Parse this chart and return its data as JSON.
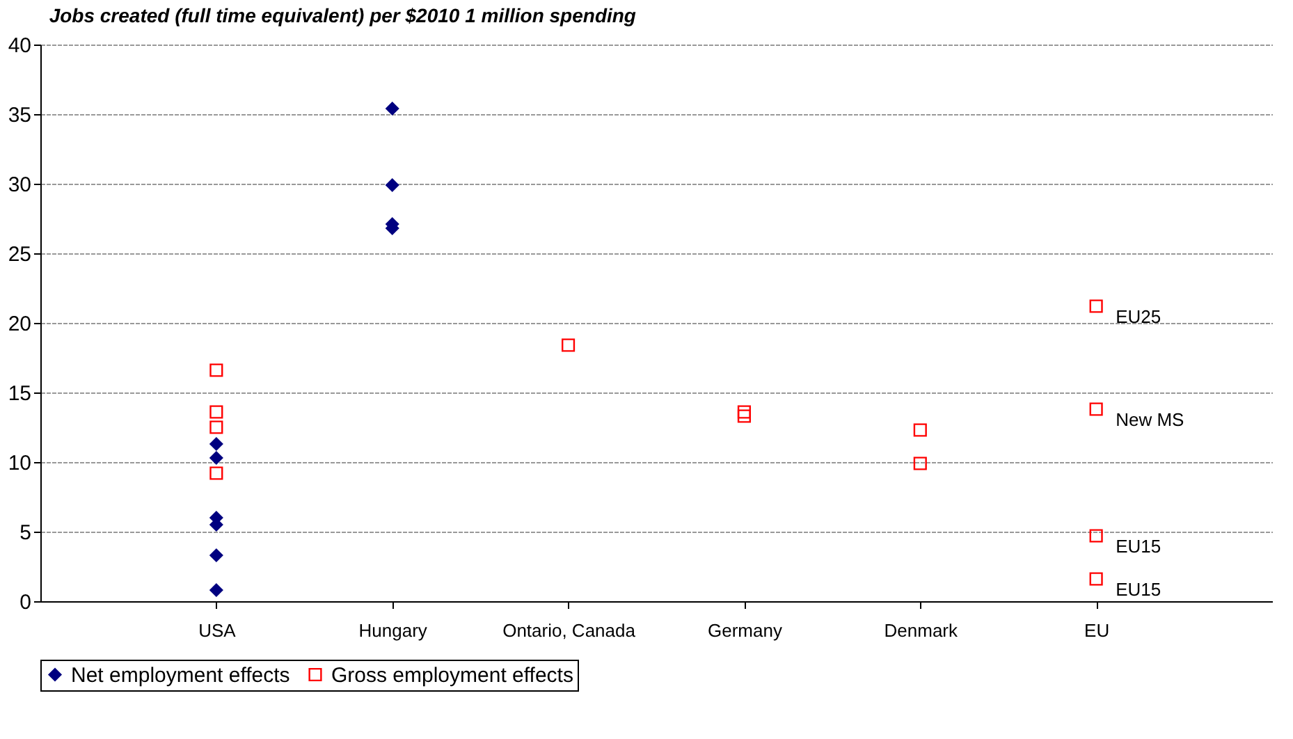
{
  "chart_data": {
    "type": "scatter",
    "title": "Jobs created (full time equivalent) per $2010 1 million spending",
    "categories": [
      "USA",
      "Hungary",
      "Ontario, Canada",
      "Germany",
      "Denmark",
      "EU"
    ],
    "series": [
      {
        "name": "Net employment effects",
        "color": "#000080",
        "marker": "diamond",
        "x": [
          "USA",
          "USA",
          "USA",
          "USA",
          "USA",
          "USA",
          "Hungary",
          "Hungary",
          "Hungary",
          "Hungary"
        ],
        "values": [
          11.3,
          10.3,
          6.0,
          5.5,
          3.3,
          0.8,
          35.4,
          29.9,
          27.1,
          26.8
        ]
      },
      {
        "name": "Gross employment effects",
        "color": "#ff0000",
        "marker": "square",
        "x": [
          "USA",
          "USA",
          "USA",
          "USA",
          "Ontario, Canada",
          "Germany",
          "Germany",
          "Denmark",
          "Denmark",
          "EU",
          "EU",
          "EU",
          "EU"
        ],
        "values": [
          16.6,
          13.6,
          12.5,
          9.2,
          18.4,
          13.6,
          13.3,
          12.3,
          9.9,
          21.2,
          13.8,
          4.7,
          1.6
        ]
      }
    ],
    "annotations": [
      {
        "text": "EU25",
        "x": "EU",
        "y": 21.2
      },
      {
        "text": "New MS",
        "x": "EU",
        "y": 13.8
      },
      {
        "text": "EU15",
        "x": "EU",
        "y": 4.7
      },
      {
        "text": "EU15",
        "x": "EU",
        "y": 1.6
      }
    ],
    "ylim": [
      0,
      40
    ],
    "yticks": [
      0,
      5,
      10,
      15,
      20,
      25,
      30,
      35,
      40
    ],
    "grid": "y",
    "legend": "bottom"
  }
}
